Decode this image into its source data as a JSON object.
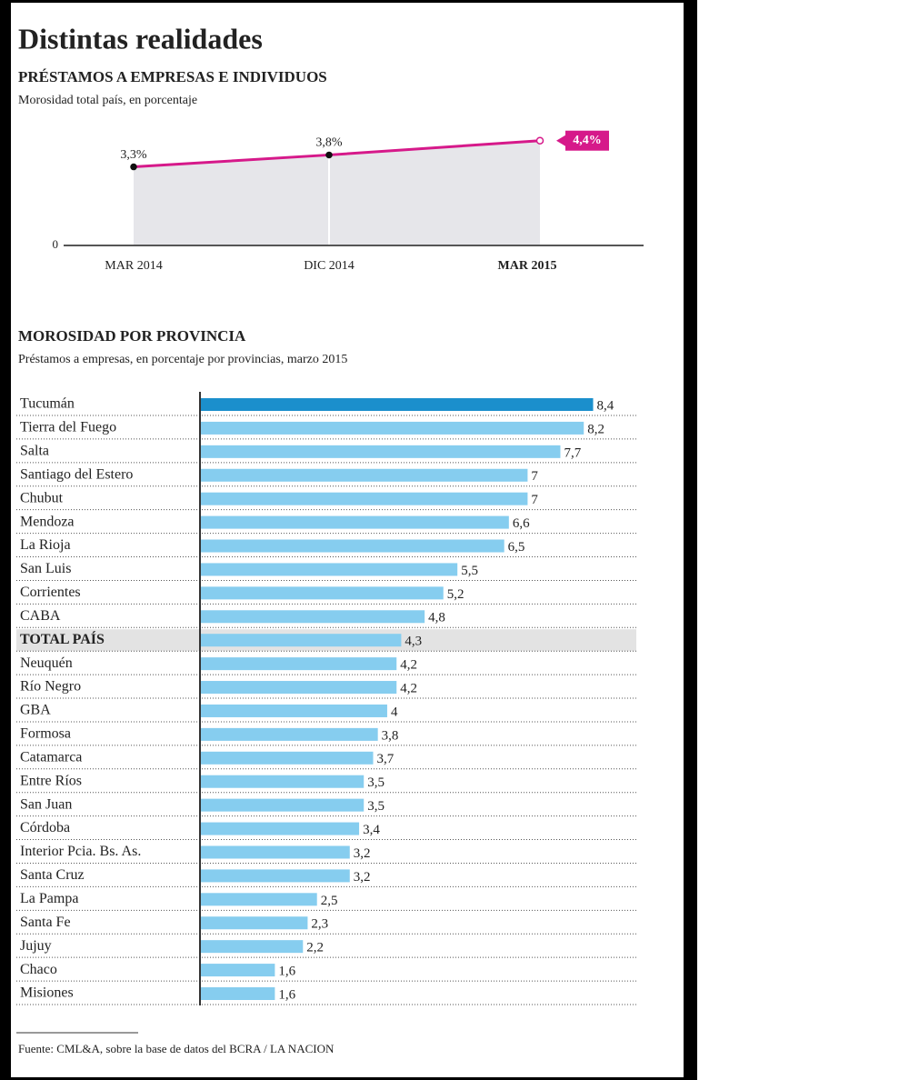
{
  "title": "Distintas realidades",
  "source": "Fuente: CML&A, sobre la base de datos del BCRA / LA NACION",
  "chart_data": [
    {
      "type": "area-line",
      "title": "PRÉSTAMOS A EMPRESAS E INDIVIDUOS",
      "subtitle": "Morosidad total país, en porcentaje",
      "categories": [
        "MAR 2014",
        "DIC 2014",
        "MAR 2015"
      ],
      "values": [
        3.3,
        3.8,
        4.4
      ],
      "value_labels": [
        "3,3%",
        "3,8%",
        "4,4%"
      ],
      "color": "#d6198a",
      "fill": "#e6e6ea",
      "ylim": [
        0,
        5
      ],
      "yticks": [
        0
      ]
    },
    {
      "type": "hbar",
      "title": "MOROSIDAD POR PROVINCIA",
      "subtitle": "Préstamos a empresas, en porcentaje por provincias, marzo 2015",
      "categories": [
        "Tucumán",
        "Tierra del Fuego",
        "Salta",
        "Santiago del Estero",
        "Chubut",
        "Mendoza",
        "La Rioja",
        "San Luis",
        "Corrientes",
        "CABA",
        "TOTAL PAÍS",
        "Neuquén",
        "Río Negro",
        "GBA",
        "Formosa",
        "Catamarca",
        "Entre Ríos",
        "San Juan",
        "Córdoba",
        "Interior Pcia. Bs. As.",
        "Santa Cruz",
        "La Pampa",
        "Santa Fe",
        "Jujuy",
        "Chaco",
        "Misiones"
      ],
      "values": [
        8.4,
        8.2,
        7.7,
        7,
        7,
        6.6,
        6.5,
        5.5,
        5.2,
        4.8,
        4.3,
        4.2,
        4.2,
        4,
        3.8,
        3.7,
        3.5,
        3.5,
        3.4,
        3.2,
        3.2,
        2.5,
        2.3,
        2.2,
        1.6,
        1.6
      ],
      "value_labels": [
        "8,4",
        "8,2",
        "7,7",
        "7",
        "7",
        "6,6",
        "6,5",
        "5,5",
        "5,2",
        "4,8",
        "4,3",
        "4,2",
        "4,2",
        "4",
        "3,8",
        "3,7",
        "3,5",
        "3,5",
        "3,4",
        "3,2",
        "3,2",
        "2,5",
        "2,3",
        "2,2",
        "1,6",
        "1,6"
      ],
      "colors": [
        "#1b8fcc",
        "#86cdef",
        "#86cdef",
        "#86cdef",
        "#86cdef",
        "#86cdef",
        "#86cdef",
        "#86cdef",
        "#86cdef",
        "#86cdef",
        "#86cdef",
        "#86cdef",
        "#86cdef",
        "#86cdef",
        "#86cdef",
        "#86cdef",
        "#86cdef",
        "#86cdef",
        "#86cdef",
        "#86cdef",
        "#86cdef",
        "#86cdef",
        "#86cdef",
        "#86cdef",
        "#86cdef",
        "#86cdef"
      ],
      "highlight_rows": [
        10
      ],
      "xlim": [
        0,
        9.4
      ]
    }
  ]
}
